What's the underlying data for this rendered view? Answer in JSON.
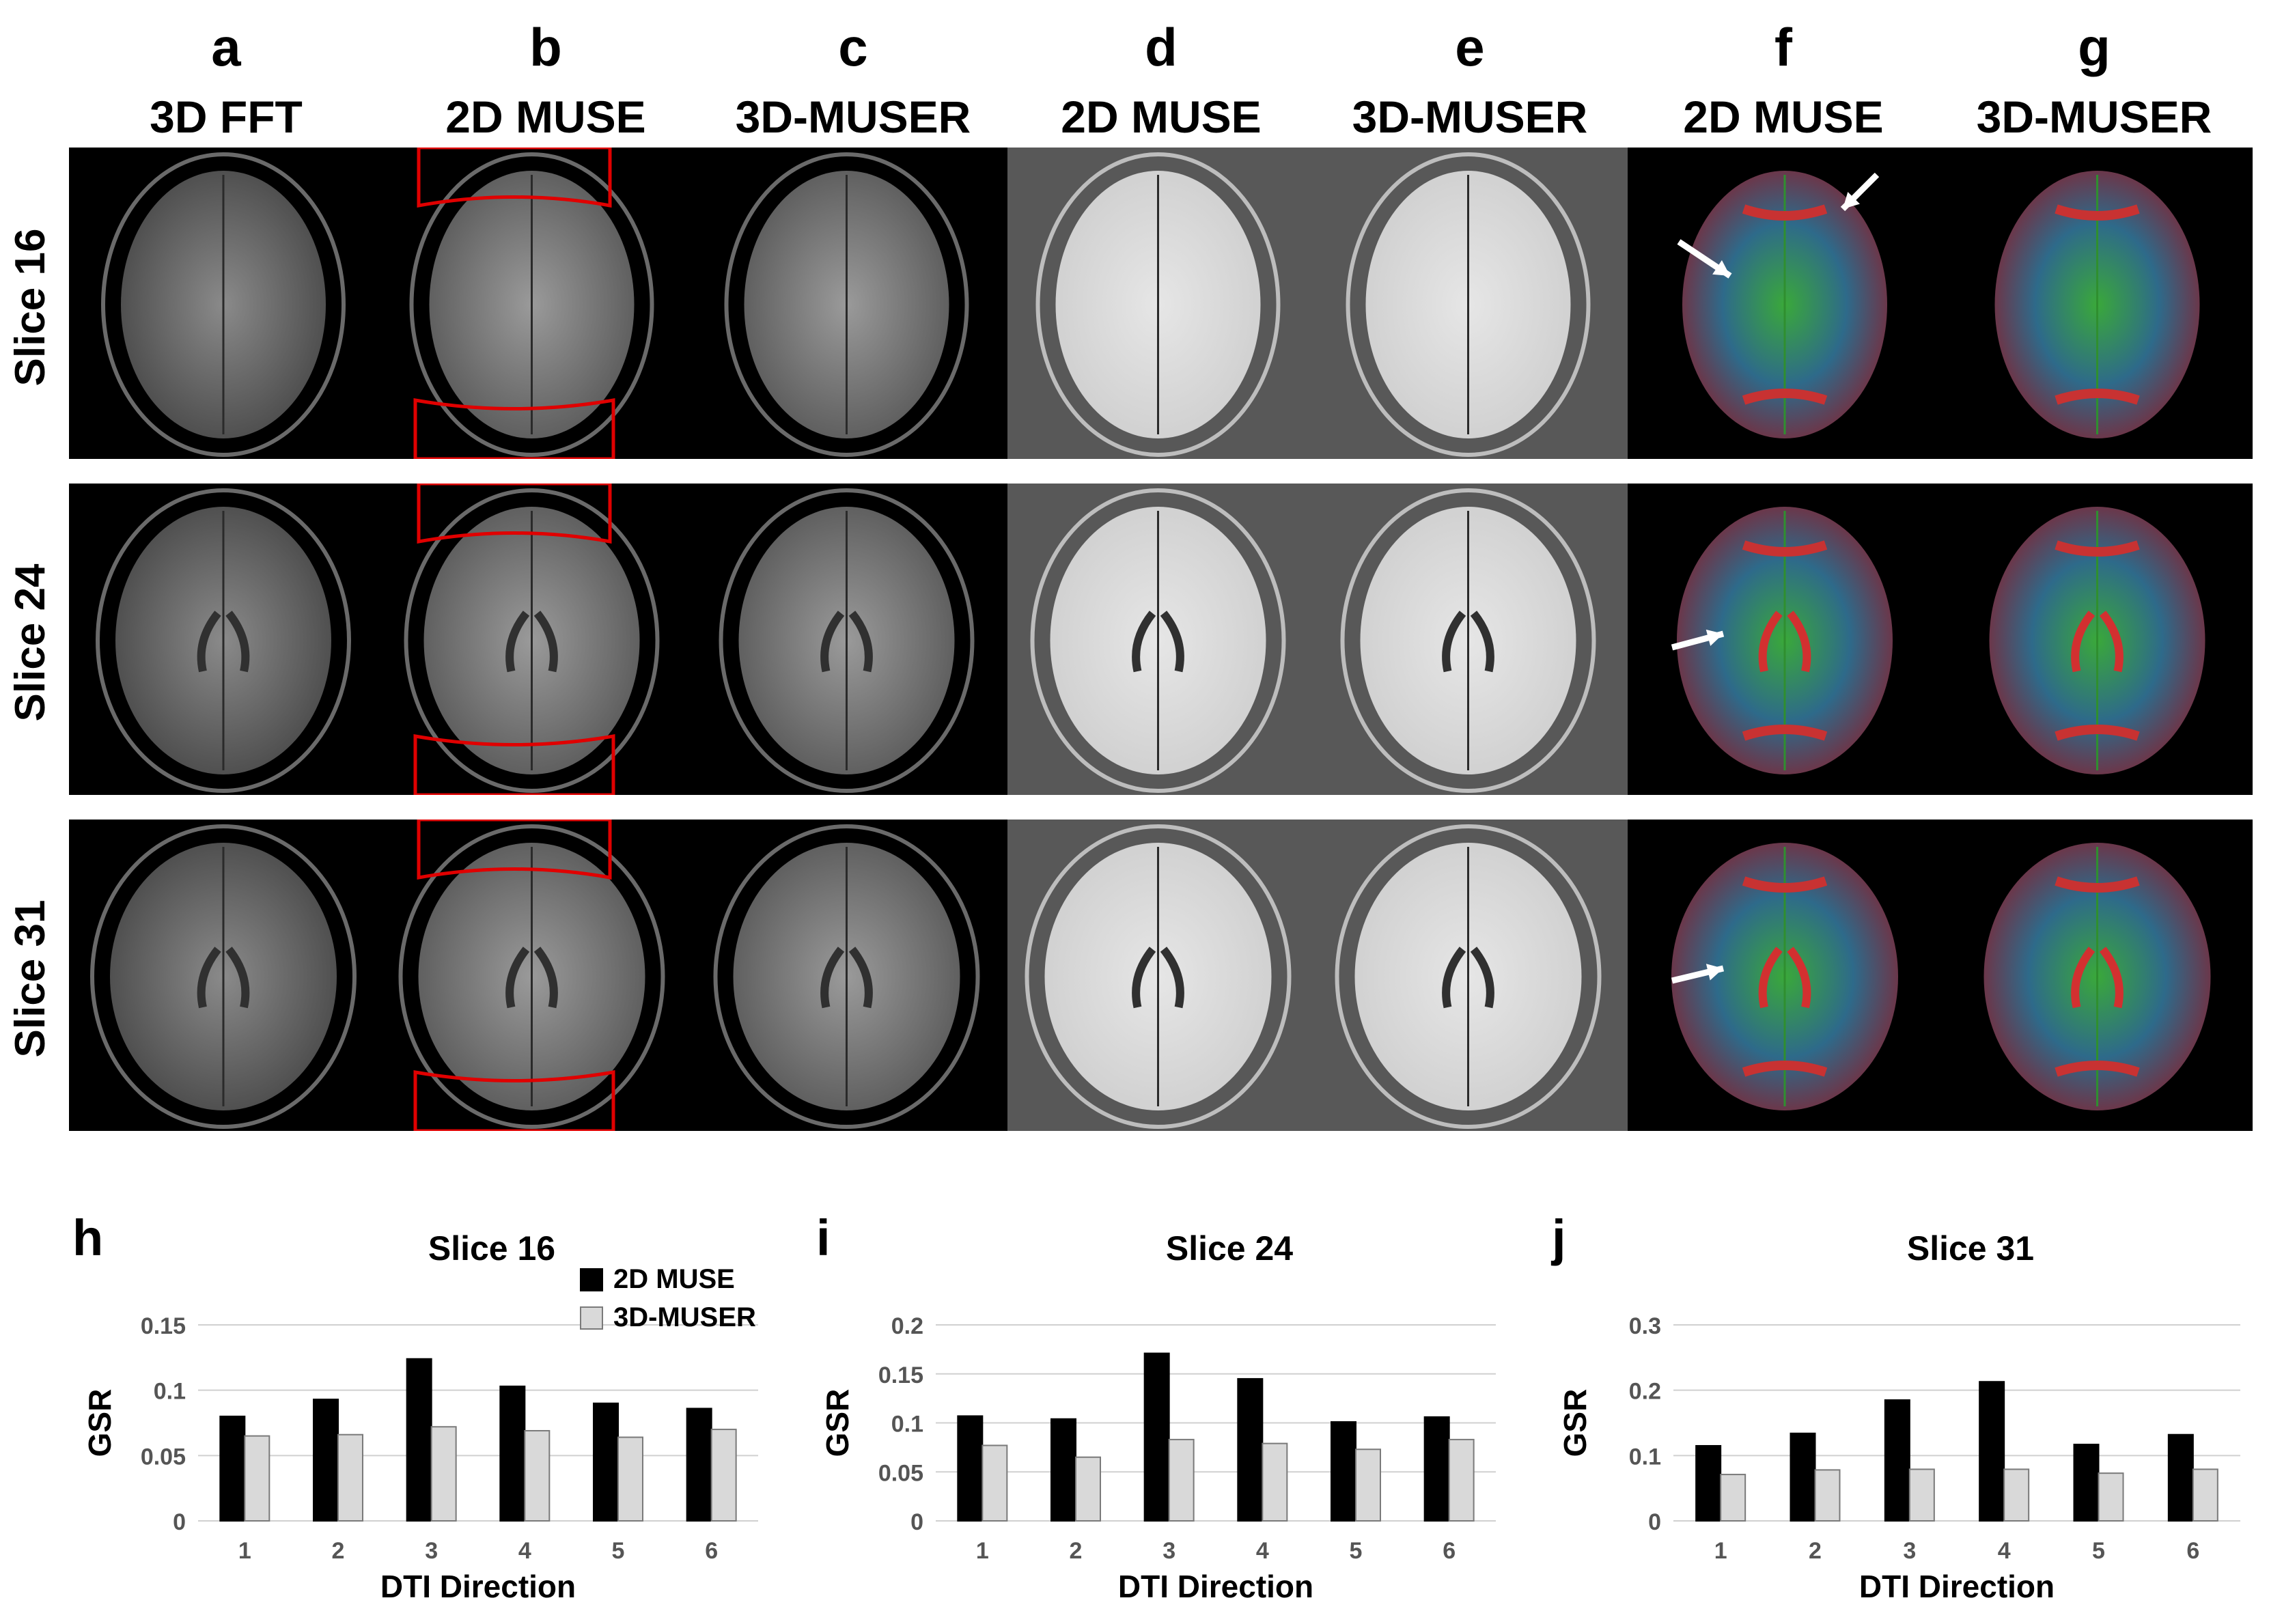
{
  "columns": [
    {
      "letter": "a",
      "method": "3D FFT"
    },
    {
      "letter": "b",
      "method": "2D MUSE"
    },
    {
      "letter": "c",
      "method": "3D-MUSER"
    },
    {
      "letter": "d",
      "method": "2D MUSE"
    },
    {
      "letter": "e",
      "method": "3D-MUSER"
    },
    {
      "letter": "f",
      "method": "2D MUSE"
    },
    {
      "letter": "g",
      "method": "3D-MUSER"
    }
  ],
  "rows": [
    {
      "label": "Slice 16"
    },
    {
      "label": "Slice 24"
    },
    {
      "label": "Slice 31"
    }
  ],
  "colors": {
    "roi_outline": "#e00000",
    "bar_2d_muse": "#000000",
    "bar_3d_muser": "#d9d9d9",
    "gridline": "#d0d0d0"
  },
  "chart_data": [
    {
      "letter": "h",
      "type": "bar",
      "title": "Slice 16",
      "xlabel": "DTI Direction",
      "ylabel": "GSR",
      "categories": [
        "1",
        "2",
        "3",
        "4",
        "5",
        "6"
      ],
      "ylim": [
        0,
        0.15
      ],
      "yticks": [
        0,
        0.05,
        0.1,
        0.15
      ],
      "ytick_labels": [
        "0",
        "0.05",
        "0.1",
        "0.15"
      ],
      "legend": "top-right",
      "series": [
        {
          "name": "2D MUSE",
          "values": [
            0.08,
            0.093,
            0.124,
            0.103,
            0.09,
            0.086
          ]
        },
        {
          "name": "3D-MUSER",
          "values": [
            0.065,
            0.066,
            0.072,
            0.069,
            0.064,
            0.07
          ]
        }
      ]
    },
    {
      "letter": "i",
      "type": "bar",
      "title": "Slice 24",
      "xlabel": "DTI Direction",
      "ylabel": "GSR",
      "categories": [
        "1",
        "2",
        "3",
        "4",
        "5",
        "6"
      ],
      "ylim": [
        0,
        0.2
      ],
      "yticks": [
        0,
        0.05,
        0.1,
        0.15,
        0.2
      ],
      "ytick_labels": [
        "0",
        "0.05",
        "0.1",
        "0.15",
        "0.2"
      ],
      "series": [
        {
          "name": "2D MUSE",
          "values": [
            0.107,
            0.104,
            0.171,
            0.145,
            0.101,
            0.106
          ]
        },
        {
          "name": "3D-MUSER",
          "values": [
            0.077,
            0.065,
            0.083,
            0.079,
            0.073,
            0.083
          ]
        }
      ]
    },
    {
      "letter": "j",
      "type": "bar",
      "title": "Slice 31",
      "xlabel": "DTI Direction",
      "ylabel": "GSR",
      "categories": [
        "1",
        "2",
        "3",
        "4",
        "5",
        "6"
      ],
      "ylim": [
        0,
        0.3
      ],
      "yticks": [
        0,
        0.1,
        0.2,
        0.3
      ],
      "ytick_labels": [
        "0",
        "0.1",
        "0.2",
        "0.3"
      ],
      "series": [
        {
          "name": "2D MUSE",
          "values": [
            0.115,
            0.134,
            0.185,
            0.213,
            0.117,
            0.132
          ]
        },
        {
          "name": "3D-MUSER",
          "values": [
            0.071,
            0.078,
            0.079,
            0.079,
            0.073,
            0.079
          ]
        }
      ]
    }
  ]
}
